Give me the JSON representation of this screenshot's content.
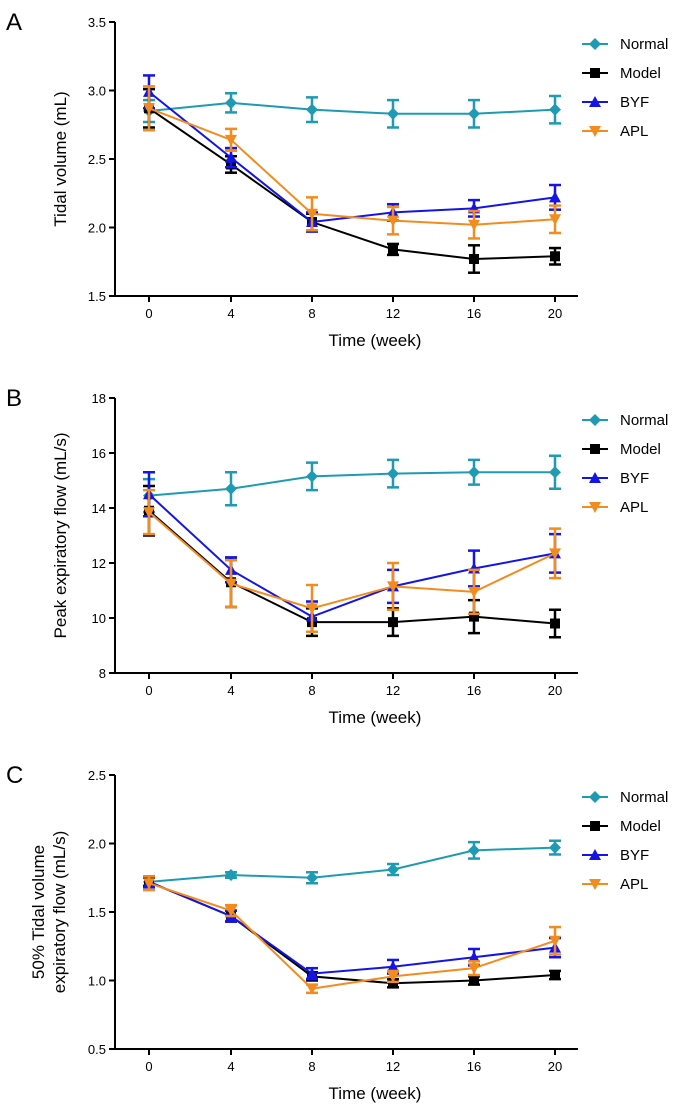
{
  "chart_data": [
    {
      "type": "line",
      "panel": "A",
      "xlabel": "Time (week)",
      "ylabel": "Tidal volume (mL)",
      "x": [
        0,
        4,
        8,
        12,
        16,
        20
      ],
      "ylim": [
        1.5,
        3.5
      ],
      "yticks": [
        "1.5",
        "2.0",
        "2.5",
        "3.0",
        "3.5"
      ],
      "series": [
        {
          "name": "Normal",
          "values": [
            2.85,
            2.91,
            2.86,
            2.83,
            2.83,
            2.86
          ],
          "errors": [
            0.08,
            0.07,
            0.09,
            0.1,
            0.1,
            0.1
          ]
        },
        {
          "name": "Model",
          "values": [
            2.87,
            2.46,
            2.04,
            1.84,
            1.77,
            1.79
          ],
          "errors": [
            0.14,
            0.06,
            0.06,
            0.04,
            0.1,
            0.06
          ]
        },
        {
          "name": "BYF",
          "values": [
            2.99,
            2.51,
            2.04,
            2.11,
            2.14,
            2.22
          ],
          "errors": [
            0.12,
            0.07,
            0.07,
            0.06,
            0.06,
            0.09
          ]
        },
        {
          "name": "APL",
          "values": [
            2.87,
            2.64,
            2.1,
            2.05,
            2.02,
            2.06
          ],
          "errors": [
            0.16,
            0.08,
            0.12,
            0.1,
            0.1,
            0.1
          ]
        }
      ]
    },
    {
      "type": "line",
      "panel": "B",
      "xlabel": "Time (week)",
      "ylabel": "Peak expiratory flow (mL/s)",
      "x": [
        0,
        4,
        8,
        12,
        16,
        20
      ],
      "ylim": [
        8,
        18
      ],
      "yticks": [
        "8",
        "10",
        "12",
        "14",
        "16",
        "18"
      ],
      "series": [
        {
          "name": "Normal",
          "values": [
            14.45,
            14.7,
            15.15,
            15.25,
            15.3,
            15.3
          ],
          "errors": [
            0.6,
            0.6,
            0.5,
            0.5,
            0.45,
            0.6
          ]
        },
        {
          "name": "Model",
          "values": [
            13.9,
            11.3,
            9.85,
            9.85,
            10.05,
            9.8
          ],
          "errors": [
            0.9,
            0.9,
            0.5,
            0.5,
            0.6,
            0.5
          ]
        },
        {
          "name": "BYF",
          "values": [
            14.5,
            11.75,
            10.05,
            11.15,
            11.8,
            12.35
          ],
          "errors": [
            0.8,
            0.45,
            0.55,
            0.6,
            0.65,
            0.7
          ]
        },
        {
          "name": "APL",
          "values": [
            13.85,
            11.25,
            10.35,
            11.15,
            10.95,
            12.35
          ],
          "errors": [
            0.8,
            0.85,
            0.85,
            0.85,
            0.8,
            0.9
          ]
        }
      ]
    },
    {
      "type": "line",
      "panel": "C",
      "xlabel": "Time (week)",
      "ylabel": [
        "50% Tidal volume",
        "expiratory flow (mL/s)"
      ],
      "x": [
        0,
        4,
        8,
        12,
        16,
        20
      ],
      "ylim": [
        0.5,
        2.5
      ],
      "yticks": [
        "0.5",
        "1.0",
        "1.5",
        "2.0",
        "2.5"
      ],
      "series": [
        {
          "name": "Normal",
          "values": [
            1.72,
            1.77,
            1.75,
            1.81,
            1.95,
            1.97
          ],
          "errors": [
            0.03,
            0.02,
            0.04,
            0.04,
            0.06,
            0.05
          ]
        },
        {
          "name": "Model",
          "values": [
            1.72,
            1.47,
            1.03,
            0.98,
            1.0,
            1.04
          ],
          "errors": [
            0.03,
            0.04,
            0.03,
            0.03,
            0.03,
            0.03
          ]
        },
        {
          "name": "BYF",
          "values": [
            1.72,
            1.47,
            1.05,
            1.1,
            1.17,
            1.24
          ],
          "errors": [
            0.04,
            0.04,
            0.04,
            0.05,
            0.06,
            0.07
          ]
        },
        {
          "name": "APL",
          "values": [
            1.71,
            1.51,
            0.94,
            1.03,
            1.09,
            1.29
          ],
          "errors": [
            0.05,
            0.04,
            0.03,
            0.04,
            0.05,
            0.1
          ]
        }
      ]
    }
  ],
  "styles": {
    "Normal": {
      "color": "#1f9ab3",
      "marker": "diamond"
    },
    "Model": {
      "color": "#000000",
      "marker": "square"
    },
    "BYF": {
      "color": "#1414e6",
      "marker": "triangle-up"
    },
    "APL": {
      "color": "#f28c1e",
      "marker": "triangle-down"
    }
  }
}
